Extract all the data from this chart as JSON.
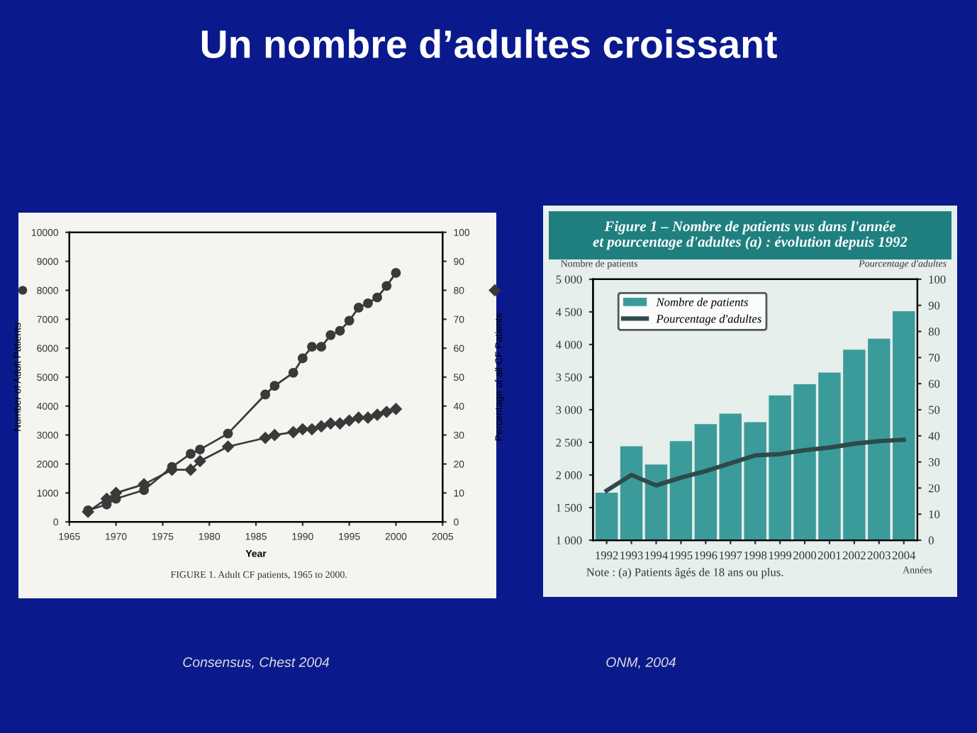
{
  "chart_data": [
    {
      "type": "line",
      "xlabel": "Year",
      "ylabel": "Number of Adult Patients",
      "y2label": "Percentage of all CF Patients",
      "annotations": [
        "Un nombre d’adultes croissant",
        "FIGURE 1. Adult CF patients, 1965 to 2000.",
        "Consensus, Chest 2004"
      ],
      "x": [
        1967,
        1969,
        1970,
        1973,
        1976,
        1978,
        1979,
        1982,
        1986,
        1987,
        1989,
        1990,
        1991,
        1992,
        1993,
        1994,
        1995,
        1996,
        1997,
        1998,
        1999,
        2000
      ],
      "series": [
        {
          "color": "#3a3a3a",
          "marker": "circle",
          "values": [
            400,
            600,
            800,
            1100,
            1900,
            2350,
            2500,
            3050,
            4400,
            4700,
            5150,
            5650,
            6050,
            6050,
            6450,
            6600,
            6950,
            7400,
            7550,
            7750,
            8150,
            8600
          ]
        },
        {
          "color": "#3a3a3a",
          "marker": "diamond",
          "axis": "y2",
          "values": [
            3.5,
            8,
            10,
            13,
            18,
            18,
            21,
            26,
            29,
            30,
            31,
            32,
            32,
            33,
            34,
            34,
            35,
            36,
            36,
            37,
            38,
            39
          ]
        }
      ],
      "xlim": [
        1965,
        2005
      ],
      "xticks": [
        1965,
        1970,
        1975,
        1980,
        1985,
        1990,
        1995,
        2000,
        2005
      ],
      "ylim": [
        0,
        10000
      ],
      "yticks": [
        0,
        1000,
        2000,
        3000,
        4000,
        5000,
        6000,
        7000,
        8000,
        9000,
        10000
      ],
      "y2lim": [
        0,
        100
      ],
      "y2ticks": [
        0,
        10,
        20,
        30,
        40,
        50,
        60,
        70,
        80,
        90,
        100
      ],
      "grid": false,
      "legend": false
    },
    {
      "type": "bar",
      "title": "Figure 1 – Nombre de patients vus dans l'année\net pourcentage d'adultes (a) : évolution depuis 1992",
      "xlabel": "Années",
      "ylabel": "Nombre de patients",
      "y2label": "Pourcentage d'adultes",
      "annotations": [
        "Note : (a) Patients âgés de 18 ans ou plus.",
        "ONM, 2004"
      ],
      "categories": [
        "1992",
        "1993",
        "1994",
        "1995",
        "1996",
        "1997",
        "1998",
        "1999",
        "2000",
        "2001",
        "2002",
        "2003",
        "2004"
      ],
      "series": [
        {
          "name": "Nombre de patients",
          "color": "#3b9b9b",
          "values": [
            1730,
            2440,
            2160,
            2520,
            2780,
            2940,
            2810,
            3220,
            3390,
            3570,
            3920,
            4090,
            4510
          ]
        },
        {
          "type": "line",
          "name": "Pourcentage d'adultes",
          "color": "#2e4a4a",
          "axis": "y2",
          "values": [
            19,
            25,
            21,
            24,
            26.5,
            29.5,
            32.5,
            33,
            34.5,
            35.5,
            37,
            38,
            38.5
          ]
        }
      ],
      "ylim": [
        1000,
        5000
      ],
      "yticks": [
        {
          "value": 1000,
          "label": "1 000"
        },
        {
          "value": 1500,
          "label": "1 500"
        },
        {
          "value": 2000,
          "label": "2 000"
        },
        {
          "value": 2500,
          "label": "2 500"
        },
        {
          "value": 3000,
          "label": "3 000"
        },
        {
          "value": 3500,
          "label": "3 500"
        },
        {
          "value": 4000,
          "label": "4 000"
        },
        {
          "value": 4500,
          "label": "4 500"
        },
        {
          "value": 5000,
          "label": "5 000"
        }
      ],
      "y2lim": [
        0,
        100
      ],
      "y2ticks": [
        0,
        10,
        20,
        30,
        40,
        50,
        60,
        70,
        80,
        90,
        100
      ],
      "grid": false,
      "legend": "top left"
    }
  ]
}
